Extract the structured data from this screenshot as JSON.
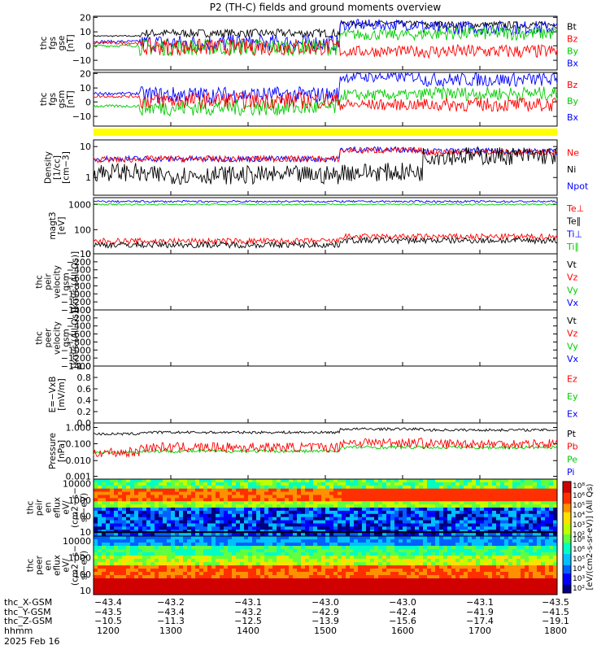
{
  "title": "P2 (TH-C) fields and ground moments overview",
  "colors": {
    "black": "#000000",
    "red": "#ff0000",
    "green": "#00cc00",
    "blue": "#0000ff",
    "yellow": "#ffff00"
  },
  "panels": [
    {
      "id": "fgs",
      "ylabel": [
        "thc",
        "fgs",
        "gse",
        "[nT]"
      ],
      "ticks": [
        "20",
        "10",
        "0",
        "−10"
      ],
      "legend": [
        {
          "text": "Bt",
          "color": "black"
        },
        {
          "text": "Bz",
          "color": "red"
        },
        {
          "text": "By",
          "color": "green"
        },
        {
          "text": "Bx",
          "color": "blue"
        }
      ]
    },
    {
      "id": "fgs_gsm",
      "ylabel": [
        "thc",
        "fgs",
        "gsm",
        "[nT]"
      ],
      "ticks": [
        "20",
        "10",
        "0",
        "−10"
      ],
      "legend": [
        {
          "text": "Bz",
          "color": "red"
        },
        {
          "text": "By",
          "color": "green"
        },
        {
          "text": "Bx",
          "color": "blue"
        }
      ]
    },
    {
      "id": "density",
      "ylabel": [
        "Density",
        "[1/cc]",
        "[cm−3]"
      ],
      "ticks": [
        "10",
        "1"
      ],
      "legend": [
        {
          "text": "Ne",
          "color": "red"
        },
        {
          "text": "Ni",
          "color": "black"
        },
        {
          "text": "Npot",
          "color": "blue"
        }
      ]
    },
    {
      "id": "temperature",
      "ylabel": [
        "magt3",
        "[eV]"
      ],
      "ticks": [
        "1000",
        "100",
        "10"
      ],
      "legend": [
        {
          "text": "Te⊥",
          "color": "red"
        },
        {
          "text": "Te∥",
          "color": "black"
        },
        {
          "text": "Ti⊥",
          "color": "blue"
        },
        {
          "text": "Ti∥",
          "color": "green"
        }
      ]
    },
    {
      "id": "peir_vel",
      "ylabel": [
        "thc",
        "peir",
        "velocity",
        "gsm",
        "[km/s (All Qs)]"
      ],
      "ticks": [
        "0",
        "−200",
        "−400",
        "−600",
        "−800",
        "−1000",
        "−1200",
        "−1400"
      ],
      "legend": [
        {
          "text": "Vt",
          "color": "black"
        },
        {
          "text": "Vz",
          "color": "red"
        },
        {
          "text": "Vy",
          "color": "green"
        },
        {
          "text": "Vx",
          "color": "blue"
        }
      ]
    },
    {
      "id": "peer_vel",
      "ylabel": [
        "thc",
        "peer",
        "velocity",
        "gsm",
        "[km/s (All Qs)]"
      ],
      "ticks": [
        "0",
        "−200",
        "−400",
        "−600",
        "−800",
        "−1000",
        "−1200",
        "−1400"
      ],
      "legend": [
        {
          "text": "Vt",
          "color": "black"
        },
        {
          "text": "Vz",
          "color": "red"
        },
        {
          "text": "Vy",
          "color": "green"
        },
        {
          "text": "Vx",
          "color": "blue"
        }
      ]
    },
    {
      "id": "efield",
      "ylabel": [
        "E=−VxB",
        "[mV/m]"
      ],
      "ticks": [
        "1.0",
        "0.8",
        "0.6",
        "0.4",
        "0.2",
        "0.0"
      ],
      "legend": [
        {
          "text": "Ez",
          "color": "red"
        },
        {
          "text": "Ey",
          "color": "green"
        },
        {
          "text": "Ex",
          "color": "blue"
        }
      ]
    },
    {
      "id": "pressure",
      "ylabel": [
        "Pressure",
        "[nPa]"
      ],
      "ticks": [
        "1.000",
        "0.100",
        "0.010",
        "0.001"
      ],
      "legend": [
        {
          "text": "Pt",
          "color": "black"
        },
        {
          "text": "Pb",
          "color": "red"
        },
        {
          "text": "Pe",
          "color": "green"
        },
        {
          "text": "Pi",
          "color": "blue"
        }
      ]
    },
    {
      "id": "peir_spec",
      "ylabel": [
        "thc",
        "peir",
        "en",
        "eflux",
        "eV/",
        "(cm2−s−",
        "sr−eV)"
      ],
      "ticks": [
        "10000",
        "1000",
        "100",
        "10"
      ]
    },
    {
      "id": "peer_spec",
      "ylabel": [
        "thc",
        "peer",
        "en",
        "eflux",
        "eV/",
        "(cm2−s−",
        "sr−eV)"
      ],
      "ticks": [
        "10000",
        "1000",
        "100",
        "10"
      ]
    }
  ],
  "colorbar": {
    "label": "[eV/(cm2-s-sr-eV)] (All Qs)",
    "ticks_upper": [
      "10⁸",
      "10⁶",
      "10⁵",
      "10⁴",
      "10³",
      "10²"
    ],
    "ticks_lower": [
      "10⁸",
      "10⁶",
      "10⁵",
      "10⁴",
      "10³",
      "10²"
    ]
  },
  "footer": {
    "row_labels": [
      "thc_X-GSM",
      "thc_Y-GSM",
      "thc_Z-GSM",
      "hhmm",
      "2025 Feb 16"
    ],
    "x_gsm": [
      "−43.4",
      "−43.2",
      "−43.1",
      "−43.0",
      "−43.0",
      "−43.1",
      "−43.5"
    ],
    "y_gsm": [
      "−43.5",
      "−43.4",
      "−43.2",
      "−42.9",
      "−42.4",
      "−41.9",
      "−41.5"
    ],
    "z_gsm": [
      "−10.5",
      "−11.3",
      "−12.5",
      "−13.9",
      "−15.6",
      "−17.4",
      "−19.1"
    ],
    "hhmm": [
      "1200",
      "1300",
      "1400",
      "1500",
      "1600",
      "1700",
      "1800"
    ]
  },
  "chart_data": {
    "type": "line",
    "title": "P2 (TH-C) fields and ground moments overview",
    "date": "2025 Feb 16",
    "x_time_hhmm": [
      "1200",
      "1300",
      "1400",
      "1500",
      "1600",
      "1700",
      "1800"
    ],
    "series": [
      {
        "name": "Bt",
        "panel": "fgs",
        "x": [
          "1200",
          "1300",
          "1400",
          "1500",
          "1600",
          "1700",
          "1800"
        ],
        "values": [
          7,
          10,
          8,
          5,
          17,
          16,
          14
        ]
      },
      {
        "name": "Bz",
        "panel": "fgs",
        "x": [
          "1200",
          "1300",
          "1400",
          "1500",
          "1600",
          "1700",
          "1800"
        ],
        "values": [
          2,
          -2,
          0,
          -2,
          -5,
          -8,
          -3
        ]
      },
      {
        "name": "By",
        "panel": "fgs",
        "x": [
          "1200",
          "1300",
          "1400",
          "1500",
          "1600",
          "1700",
          "1800"
        ],
        "values": [
          0,
          -2,
          0,
          0,
          10,
          12,
          10
        ]
      },
      {
        "name": "Bx",
        "panel": "fgs",
        "x": [
          "1200",
          "1300",
          "1400",
          "1500",
          "1600",
          "1700",
          "1800"
        ],
        "values": [
          3,
          2,
          2,
          4,
          15,
          14,
          11
        ]
      },
      {
        "name": "Ne",
        "panel": "density",
        "x": [
          "1200",
          "1300",
          "1400",
          "1500",
          "1600",
          "1700",
          "1800"
        ],
        "values": [
          4,
          5,
          4,
          5,
          8,
          7,
          6
        ]
      },
      {
        "name": "Ni",
        "panel": "density",
        "x": [
          "1200",
          "1300",
          "1400",
          "1500",
          "1600",
          "1700",
          "1800"
        ],
        "values": [
          2,
          1,
          1,
          4,
          1.5,
          6,
          5
        ]
      },
      {
        "name": "Pt",
        "panel": "pressure",
        "x": [
          "1200",
          "1300",
          "1400",
          "1500",
          "1600",
          "1700",
          "1800"
        ],
        "values": [
          0.4,
          0.45,
          0.5,
          0.5,
          0.8,
          0.7,
          0.7
        ]
      },
      {
        "name": "Pb",
        "panel": "pressure",
        "x": [
          "1200",
          "1300",
          "1400",
          "1500",
          "1600",
          "1700",
          "1800"
        ],
        "values": [
          0.03,
          0.06,
          0.05,
          0.1,
          0.12,
          0.12,
          0.1
        ]
      },
      {
        "name": "Pe",
        "panel": "pressure",
        "x": [
          "1200",
          "1300",
          "1400",
          "1500",
          "1600",
          "1700",
          "1800"
        ],
        "values": [
          0.03,
          0.04,
          0.03,
          0.04,
          0.06,
          0.06,
          0.06
        ]
      }
    ]
  }
}
